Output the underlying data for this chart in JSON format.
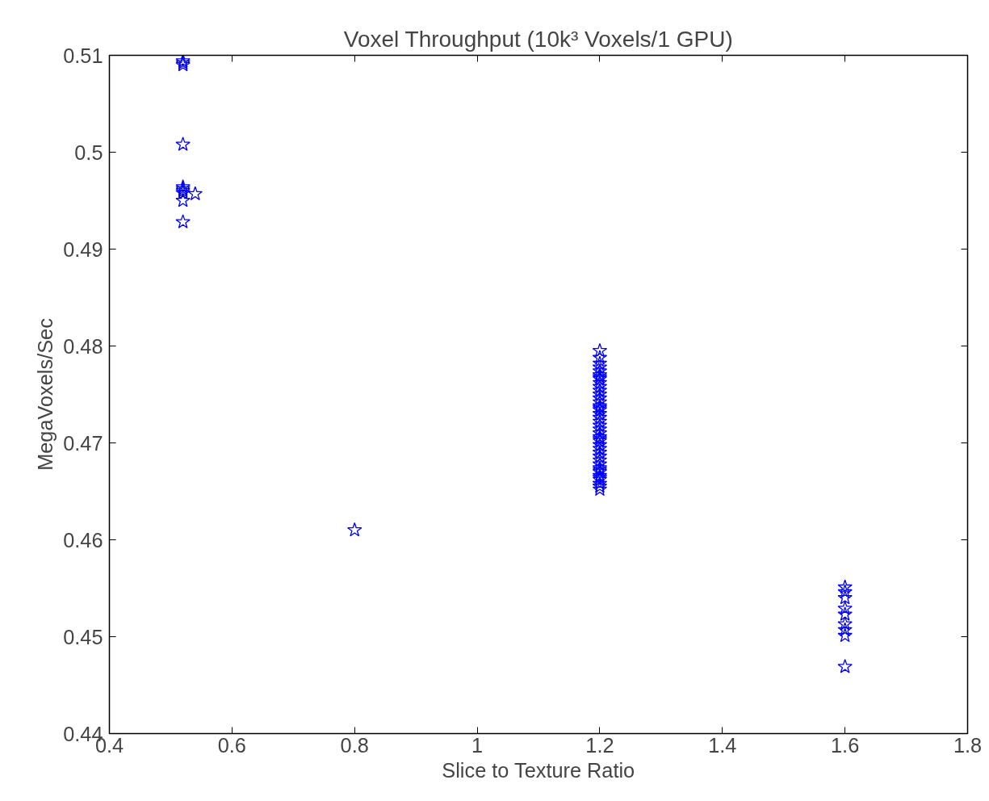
{
  "chart_data": {
    "type": "scatter",
    "title": "Voxel Throughput (10k³ Voxels/1 GPU)",
    "xlabel": "Slice to Texture Ratio",
    "ylabel": "MegaVoxels/Sec",
    "xlim": [
      0.4,
      1.8
    ],
    "xticks": [
      0.4,
      0.6,
      0.8,
      1,
      1.2,
      1.4,
      1.6,
      1.8
    ],
    "ylim": [
      0.44,
      0.51
    ],
    "yticks": [
      0.44,
      0.45,
      0.46,
      0.47,
      0.48,
      0.49,
      0.5,
      0.51
    ],
    "grid": false,
    "marker": "star",
    "series": [
      {
        "color": "#0000ff",
        "x": [
          0.52,
          0.52,
          0.52,
          0.52,
          0.52,
          0.52,
          0.52,
          0.52,
          0.52,
          0.52,
          0.54,
          0.8,
          1.2,
          1.2,
          1.2,
          1.2,
          1.2,
          1.2,
          1.2,
          1.2,
          1.2,
          1.2,
          1.2,
          1.2,
          1.2,
          1.2,
          1.2,
          1.2,
          1.2,
          1.2,
          1.2,
          1.2,
          1.2,
          1.2,
          1.2,
          1.2,
          1.2,
          1.2,
          1.2,
          1.2,
          1.2,
          1.2,
          1.2,
          1.2,
          1.2,
          1.2,
          1.2,
          1.2,
          1.2,
          1.2,
          1.2,
          1.2,
          1.2,
          1.6,
          1.6,
          1.6,
          1.6,
          1.6,
          1.6,
          1.6,
          1.6,
          1.6
        ],
        "values": [
          0.5094,
          0.5092,
          0.509,
          0.5008,
          0.4964,
          0.4962,
          0.496,
          0.4958,
          0.495,
          0.4928,
          0.4957,
          0.461,
          0.4795,
          0.4788,
          0.4782,
          0.4778,
          0.4774,
          0.477,
          0.4766,
          0.4762,
          0.4758,
          0.4754,
          0.475,
          0.4746,
          0.4742,
          0.4738,
          0.4734,
          0.473,
          0.4726,
          0.4722,
          0.4718,
          0.4714,
          0.471,
          0.4706,
          0.4702,
          0.4698,
          0.4694,
          0.469,
          0.4686,
          0.4682,
          0.4678,
          0.4674,
          0.467,
          0.4666,
          0.4662,
          0.4658,
          0.4655,
          0.4652,
          0.4768,
          0.4736,
          0.4704,
          0.4672,
          0.4664,
          0.4551,
          0.4546,
          0.454,
          0.4529,
          0.4523,
          0.4513,
          0.4507,
          0.4501,
          0.4469
        ]
      }
    ]
  }
}
